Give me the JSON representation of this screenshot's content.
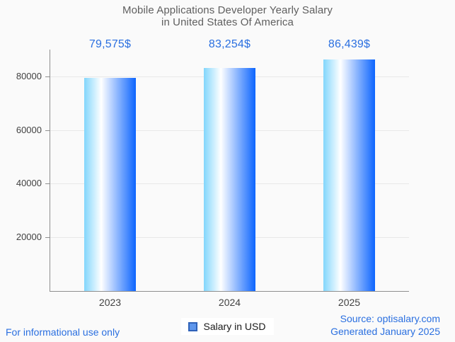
{
  "title": {
    "line1": "Mobile Applications Developer Yearly Salary",
    "line2": "in United States Of America"
  },
  "chart_data": {
    "type": "bar",
    "title": "Mobile Applications Developer Yearly Salary in United States Of America",
    "categories": [
      "2023",
      "2024",
      "2025"
    ],
    "series": [
      {
        "name": "Salary in USD",
        "values": [
          79575,
          83254,
          86439
        ]
      }
    ],
    "value_labels": [
      "79,575$",
      "83,254$",
      "86,439$"
    ],
    "xlabel": "",
    "ylabel": "",
    "y_ticks": [
      20000,
      40000,
      60000,
      80000
    ],
    "ylim": [
      0,
      90000
    ],
    "grid": true,
    "legend_position": "bottom-center"
  },
  "legend": {
    "label": "Salary in USD"
  },
  "footer": {
    "disclaimer": "For informational use only",
    "source": "Source: optisalary.com",
    "generated": "Generated January 2025"
  },
  "colors": {
    "background": "#fafafa",
    "accent_blue": "#2a6fe0",
    "title_gray": "#5f5f5f",
    "tick_label_gray": "#424242",
    "axis_gray": "#8f8f8f",
    "gridline_gray": "#e8e8e8",
    "bar_gradient_left": "#82d6fc",
    "bar_gradient_mid": "#ffffff",
    "bar_gradient_right": "#0d65fe",
    "legend_marker_fill": "#5e96ec",
    "legend_marker_border": "#2f62b8"
  }
}
